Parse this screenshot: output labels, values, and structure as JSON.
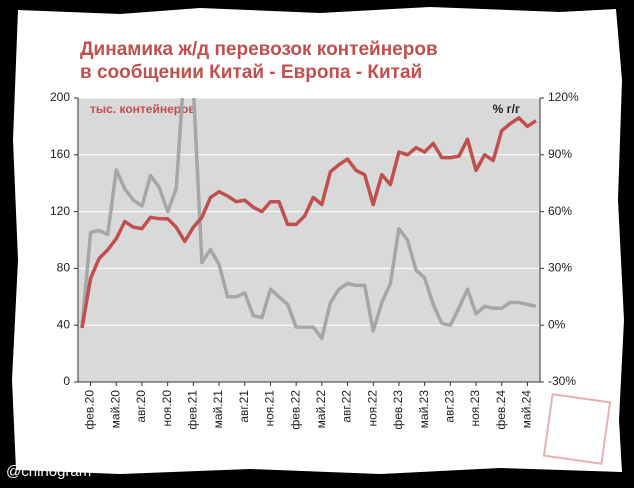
{
  "chart_data": {
    "type": "line",
    "title": [
      "Динамика ж/д перевозок контейнеров",
      "в сообщении Китай - Европа - Китай"
    ],
    "watermark": "@chinogram",
    "categories": [
      null,
      "фев.20",
      null,
      null,
      "май.20",
      null,
      null,
      "авг.20",
      null,
      null,
      "ноя.20",
      null,
      null,
      "фев.21",
      null,
      null,
      "май.21",
      null,
      null,
      "авг.21",
      null,
      null,
      "ноя.21",
      null,
      null,
      "фев.22",
      null,
      null,
      "май.22",
      null,
      null,
      "авг.22",
      null,
      null,
      "ноя.22",
      null,
      null,
      "фев.23",
      null,
      null,
      "май.23",
      null,
      null,
      "авг.23",
      null,
      null,
      "ноя.23",
      null,
      null,
      "фев.24",
      null,
      null,
      "май.24",
      null
    ],
    "series": [
      {
        "name": "% г/г",
        "color": "#a6a6a6",
        "axis": "y2",
        "values": [
          -1,
          49,
          50,
          48,
          82,
          72,
          66,
          63,
          79,
          73,
          60,
          72,
          140,
          125,
          33,
          40,
          32,
          15,
          15,
          17,
          5,
          4,
          19,
          15,
          11,
          -1,
          -1,
          -1,
          -7,
          12,
          19,
          22,
          21,
          21,
          -3,
          12,
          22,
          51,
          45,
          29,
          25,
          11,
          1,
          0,
          9,
          19,
          6,
          10,
          9,
          9,
          12,
          12,
          11,
          10
        ]
      },
      {
        "name": "тыс. контейнеров",
        "color": "#c0504d",
        "values": [
          38,
          73,
          87,
          93,
          101,
          113,
          109,
          108,
          116,
          115,
          115,
          109,
          99,
          109,
          116,
          130,
          134,
          131,
          127,
          128,
          123,
          120,
          127,
          127,
          111,
          111,
          117,
          130,
          125,
          148,
          153,
          157,
          149,
          146,
          125,
          146,
          139,
          162,
          160,
          165,
          162,
          168,
          158,
          158,
          159,
          171,
          149,
          160,
          156,
          177,
          182,
          186,
          180,
          184
        ]
      }
    ],
    "ylim": [
      0,
      200
    ],
    "yticks": [
      0,
      40,
      80,
      120,
      160,
      200
    ],
    "y2lim": [
      -30,
      120
    ],
    "y2ticks": [
      {
        "value": -30,
        "label": "-30%"
      },
      {
        "value": 0,
        "label": "0%"
      },
      {
        "value": 30,
        "label": "30%"
      },
      {
        "value": 60,
        "label": "60%"
      },
      {
        "value": 90,
        "label": "90%"
      },
      {
        "value": 120,
        "label": "120%"
      }
    ],
    "grid": true
  }
}
